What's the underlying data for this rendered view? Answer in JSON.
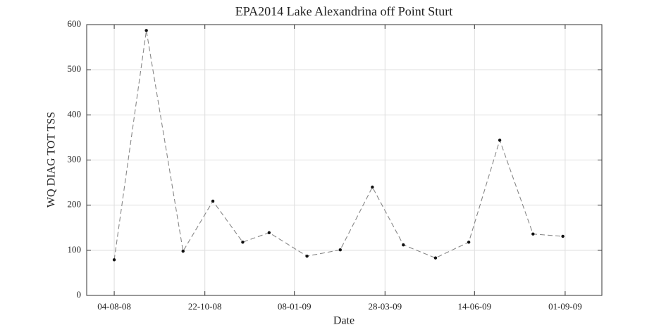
{
  "chart_data": {
    "type": "line",
    "title": "EPA2014 Lake Alexandrina off Point Sturt",
    "x_label": "Date",
    "y_label": "WQ DIAG TOT TSS",
    "x": [
      "2008-08-04",
      "2008-09-01",
      "2008-10-03",
      "2008-10-29",
      "2008-11-24",
      "2008-12-17",
      "2009-01-19",
      "2009-02-17",
      "2009-03-17",
      "2009-04-13",
      "2009-05-11",
      "2009-06-09",
      "2009-07-06",
      "2009-08-04",
      "2009-08-30"
    ],
    "series": [
      {
        "name": "WQ DIAG TOT TSS",
        "color": "#888888",
        "marker_color": "#111111",
        "values": [
          79,
          587,
          98,
          209,
          118,
          139,
          87,
          101,
          240,
          112,
          83,
          118,
          344,
          136,
          131
        ]
      }
    ],
    "xlim": [
      "2008-07-11",
      "2009-10-03"
    ],
    "xticks": [
      {
        "value": "2008-08-04",
        "label": "04-08-08"
      },
      {
        "value": "2008-10-22",
        "label": "22-10-08"
      },
      {
        "value": "2009-01-08",
        "label": "08-01-09"
      },
      {
        "value": "2009-03-28",
        "label": "28-03-09"
      },
      {
        "value": "2009-06-14",
        "label": "14-06-09"
      },
      {
        "value": "2009-09-01",
        "label": "01-09-09"
      }
    ],
    "ylim": [
      0,
      600
    ],
    "yticks": [
      0,
      100,
      200,
      300,
      400,
      500,
      600
    ],
    "grid": true,
    "line_style": "dashed"
  }
}
